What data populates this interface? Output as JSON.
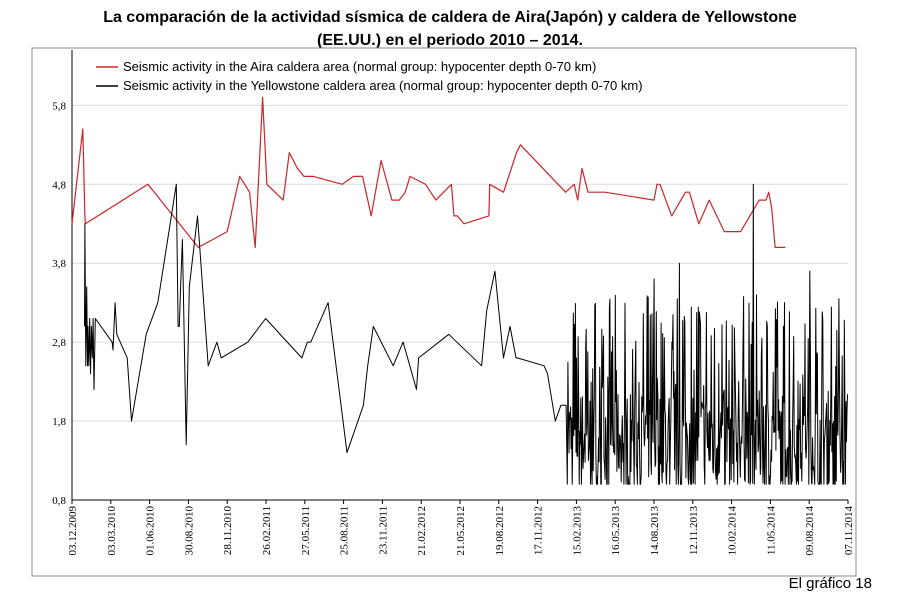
{
  "chart_data": {
    "type": "line",
    "title": "La comparación de la actividad sísmica de  caldera de Aira(Japón) y caldera de Yellowstone\n(EE.UU.)  en el periodo 2010 – 2014.",
    "caption": "El gráfico 18",
    "xlabel": "",
    "ylabel": "",
    "ylim": [
      0.8,
      6.4
    ],
    "xlim": [
      "2009-12-03",
      "2014-11-07"
    ],
    "yticks": [
      "0,8",
      "1,8",
      "2,8",
      "3,8",
      "4,8",
      "5,8"
    ],
    "ytick_values": [
      0.8,
      1.8,
      2.8,
      3.8,
      4.8,
      5.8
    ],
    "xticks": [
      "03.12.2009",
      "03.03.2010",
      "01.06.2010",
      "30.08.2010",
      "28.11.2010",
      "26.02.2011",
      "27.05.2011",
      "25.08.2011",
      "23.11.2011",
      "21.02.2012",
      "21.05.2012",
      "19.08.2012",
      "17.11.2012",
      "15.02.2013",
      "16.05.2013",
      "14.08.2013",
      "12.11.2013",
      "10.02.2014",
      "11.05.2014",
      "09.08.2014",
      "07.11.2014"
    ],
    "grid": "horizontal",
    "legend_position": "top-left",
    "series": [
      {
        "name": "Seismic activity in the Aira caldera area (normal group: hypocenter depth 0-70 km)",
        "color": "#c8262a",
        "x": [
          "2009-12-03",
          "2009-12-28",
          "2010-01-02",
          "2010-01-03",
          "2010-05-28",
          "2010-09-22",
          "2010-11-28",
          "2010-12-27",
          "2011-01-19",
          "2011-02-01",
          "2011-02-18",
          "2011-02-28",
          "2011-04-07",
          "2011-04-21",
          "2011-05-10",
          "2011-05-25",
          "2011-06-16",
          "2011-08-22",
          "2011-09-17",
          "2011-10-08",
          "2011-10-28",
          "2011-11-20",
          "2011-12-05",
          "2011-12-15",
          "2012-01-01",
          "2012-01-15",
          "2012-01-26",
          "2012-03-02",
          "2012-03-26",
          "2012-05-01",
          "2012-05-07",
          "2012-05-15",
          "2012-05-30",
          "2012-07-27",
          "2012-07-29",
          "2012-08-30",
          "2012-09-29",
          "2012-10-08",
          "2013-01-21",
          "2013-02-10",
          "2013-02-18",
          "2013-02-28",
          "2013-03-14",
          "2013-04-07",
          "2013-04-22",
          "2013-08-14",
          "2013-08-21",
          "2013-08-28",
          "2013-09-24",
          "2013-10-26",
          "2013-11-04",
          "2013-11-26",
          "2013-12-20",
          "2014-01-24",
          "2014-02-08",
          "2014-02-21",
          "2014-03-03",
          "2014-04-15",
          "2014-05-01",
          "2014-05-07",
          "2014-05-14",
          "2014-05-22",
          "2014-06-15"
        ],
        "y": [
          4.3,
          5.5,
          4.4,
          4.3,
          4.8,
          4.0,
          4.2,
          4.9,
          4.7,
          4.0,
          5.9,
          4.8,
          4.6,
          5.2,
          5.0,
          4.9,
          4.9,
          4.8,
          4.9,
          4.9,
          4.4,
          5.1,
          4.8,
          4.6,
          4.6,
          4.7,
          4.9,
          4.8,
          4.6,
          4.8,
          4.4,
          4.4,
          4.3,
          4.4,
          4.8,
          4.7,
          5.2,
          5.3,
          4.7,
          4.8,
          4.6,
          5.0,
          4.7,
          4.7,
          4.7,
          4.6,
          4.8,
          4.8,
          4.4,
          4.7,
          4.7,
          4.3,
          4.6,
          4.2,
          4.2,
          4.2,
          4.2,
          4.6,
          4.6,
          4.7,
          4.5,
          4.0,
          4.0
        ]
      },
      {
        "name": "Seismic activity in the Yellowstone caldera area (normal group: hypocenter depth 0-70 km)",
        "color": "#000000",
        "x": [
          "2010-01-01",
          "2010-01-02",
          "2010-01-04",
          "2010-01-06",
          "2010-01-08",
          "2010-01-09",
          "2010-01-11",
          "2010-01-13",
          "2010-01-15",
          "2010-01-17",
          "2010-01-19",
          "2010-01-21",
          "2010-01-23",
          "2010-01-26",
          "2010-03-06",
          "2010-03-08",
          "2010-03-13",
          "2010-03-17",
          "2010-04-10",
          "2010-04-20",
          "2010-05-24",
          "2010-06-20",
          "2010-08-02",
          "2010-08-06",
          "2010-08-09",
          "2010-08-12",
          "2010-08-16",
          "2010-08-25",
          "2010-09-01",
          "2010-09-20",
          "2010-10-15",
          "2010-11-04",
          "2010-11-14",
          "2011-01-15",
          "2011-02-25",
          "2011-05-20",
          "2011-06-02",
          "2011-06-10",
          "2011-07-20",
          "2011-09-02",
          "2011-10-10",
          "2011-10-20",
          "2011-11-02",
          "2011-12-18",
          "2012-01-10",
          "2012-02-10",
          "2012-02-15",
          "2012-04-25",
          "2012-07-10",
          "2012-07-22",
          "2012-08-10",
          "2012-08-30",
          "2012-09-14",
          "2012-09-28",
          "2012-10-01",
          "2012-12-02",
          "2012-12-10",
          "2012-12-28",
          "2013-01-10",
          "2013-01-22",
          "2013-01-25"
        ],
        "y": [
          3.0,
          4.3,
          2.5,
          3.5,
          2.5,
          3.0,
          2.5,
          3.1,
          2.4,
          3.0,
          2.6,
          3.1,
          2.2,
          3.1,
          2.8,
          2.7,
          3.3,
          2.9,
          2.6,
          1.8,
          2.9,
          3.3,
          4.8,
          3.0,
          3.0,
          3.5,
          4.1,
          1.5,
          3.5,
          4.4,
          2.5,
          2.8,
          2.6,
          2.8,
          3.1,
          2.6,
          2.8,
          2.8,
          3.3,
          1.4,
          2.0,
          2.5,
          3.0,
          2.5,
          2.8,
          2.2,
          2.6,
          2.9,
          2.5,
          3.2,
          3.7,
          2.6,
          3.0,
          2.6,
          2.6,
          2.5,
          2.4,
          1.8,
          2.0,
          2.0,
          1.0
        ]
      }
    ],
    "dense_segment": {
      "series": "Seismic activity in the Yellowstone caldera area (normal group: hypocenter depth 0-70 km)",
      "x_range": [
        "2013-01-25",
        "2014-11-07"
      ],
      "y_min": 1.0,
      "y_max": 4.8,
      "typical_range": [
        1.0,
        2.2
      ],
      "notable_peaks": [
        {
          "x": "2013-08-14",
          "y": 3.6
        },
        {
          "x": "2013-10-12",
          "y": 3.8
        },
        {
          "x": "2014-04-01",
          "y": 4.8
        },
        {
          "x": "2014-08-10",
          "y": 3.7
        }
      ]
    }
  }
}
